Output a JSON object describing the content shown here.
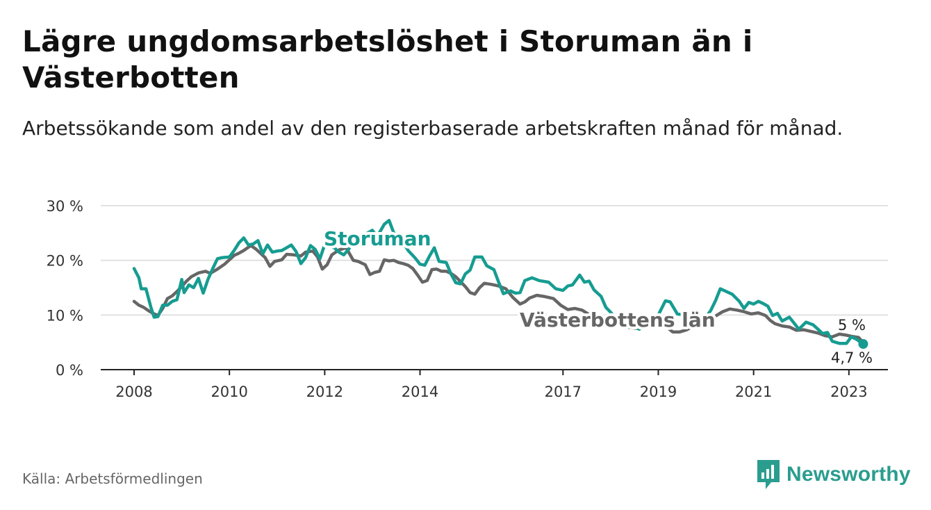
{
  "title": "Lägre ungdomsarbetslöshet i Storuman än i Västerbotten",
  "subtitle": "Arbetssökande som andel av den registerbaserade arbetskraften månad för månad.",
  "source": "Källa: Arbetsförmedlingen",
  "brand": {
    "name": "Newsworthy",
    "icon": "newsworthy-logo-icon",
    "color": "#2a9d8f"
  },
  "chart_data": {
    "type": "line",
    "y_unit": "%",
    "ylim": [
      0,
      30
    ],
    "yticks": [
      0,
      10,
      20,
      30
    ],
    "ytick_labels": [
      "0 %",
      "10 %",
      "20 %",
      "30 %"
    ],
    "xlim": [
      2008.0,
      2023.6
    ],
    "xticks": [
      2008,
      2010,
      2012,
      2014,
      2017,
      2019,
      2021,
      2023
    ],
    "xtick_labels": [
      "2008",
      "2010",
      "2012",
      "2014",
      "2017",
      "2019",
      "2021",
      "2023"
    ],
    "grid": true,
    "series": [
      {
        "name": "Västerbottens län",
        "color": "#666666",
        "end_label": "5 %",
        "points": [
          [
            2008.0,
            12.5
          ],
          [
            2008.1,
            11.8
          ],
          [
            2008.2,
            11.4
          ],
          [
            2008.3,
            10.8
          ],
          [
            2008.4,
            10.3
          ],
          [
            2008.5,
            9.9
          ],
          [
            2008.6,
            11.2
          ],
          [
            2008.7,
            13.0
          ],
          [
            2008.8,
            13.5
          ],
          [
            2008.9,
            14.3
          ],
          [
            2009.0,
            15.2
          ],
          [
            2009.1,
            16.2
          ],
          [
            2009.2,
            17.0
          ],
          [
            2009.35,
            17.7
          ],
          [
            2009.5,
            18.0
          ],
          [
            2009.6,
            17.6
          ],
          [
            2009.75,
            18.4
          ],
          [
            2009.9,
            19.3
          ],
          [
            2010.0,
            20.1
          ],
          [
            2010.1,
            20.9
          ],
          [
            2010.2,
            21.3
          ],
          [
            2010.3,
            21.8
          ],
          [
            2010.45,
            22.7
          ],
          [
            2010.55,
            22.1
          ],
          [
            2010.65,
            21.3
          ],
          [
            2010.75,
            20.5
          ],
          [
            2010.85,
            18.9
          ],
          [
            2010.95,
            19.8
          ],
          [
            2011.1,
            20.1
          ],
          [
            2011.2,
            21.1
          ],
          [
            2011.35,
            21.0
          ],
          [
            2011.5,
            20.8
          ],
          [
            2011.6,
            21.5
          ],
          [
            2011.75,
            21.7
          ],
          [
            2011.85,
            20.6
          ],
          [
            2011.95,
            18.4
          ],
          [
            2012.05,
            19.2
          ],
          [
            2012.15,
            21.0
          ],
          [
            2012.3,
            21.9
          ],
          [
            2012.45,
            22.3
          ],
          [
            2012.6,
            20.0
          ],
          [
            2012.7,
            19.8
          ],
          [
            2012.85,
            19.2
          ],
          [
            2012.95,
            17.4
          ],
          [
            2013.05,
            17.8
          ],
          [
            2013.15,
            18.0
          ],
          [
            2013.25,
            20.1
          ],
          [
            2013.35,
            19.9
          ],
          [
            2013.45,
            20.0
          ],
          [
            2013.55,
            19.6
          ],
          [
            2013.65,
            19.4
          ],
          [
            2013.75,
            19.1
          ],
          [
            2013.85,
            18.5
          ],
          [
            2013.95,
            17.3
          ],
          [
            2014.05,
            16.0
          ],
          [
            2014.15,
            16.3
          ],
          [
            2014.25,
            18.3
          ],
          [
            2014.35,
            18.4
          ],
          [
            2014.45,
            18.0
          ],
          [
            2014.55,
            18.0
          ],
          [
            2014.65,
            17.6
          ],
          [
            2014.75,
            17.0
          ],
          [
            2014.85,
            16.1
          ],
          [
            2014.95,
            15.2
          ],
          [
            2015.05,
            14.1
          ],
          [
            2015.15,
            13.8
          ],
          [
            2015.25,
            15.0
          ],
          [
            2015.35,
            15.8
          ],
          [
            2015.5,
            15.6
          ],
          [
            2015.65,
            15.3
          ],
          [
            2015.8,
            14.8
          ],
          [
            2015.95,
            13.2
          ],
          [
            2016.1,
            12.0
          ],
          [
            2016.2,
            12.4
          ],
          [
            2016.3,
            13.1
          ],
          [
            2016.45,
            13.6
          ],
          [
            2016.6,
            13.4
          ],
          [
            2016.8,
            13.0
          ],
          [
            2016.95,
            11.8
          ],
          [
            2017.1,
            11.0
          ],
          [
            2017.25,
            11.2
          ],
          [
            2017.4,
            10.9
          ],
          [
            2017.6,
            9.8
          ],
          [
            2017.8,
            9.0
          ],
          [
            2018.0,
            8.5
          ],
          [
            2018.2,
            8.0
          ],
          [
            2018.4,
            7.7
          ],
          [
            2018.6,
            7.5
          ],
          [
            2018.8,
            7.9
          ],
          [
            2019.0,
            8.2
          ],
          [
            2019.15,
            8.0
          ],
          [
            2019.3,
            6.9
          ],
          [
            2019.45,
            6.9
          ],
          [
            2019.6,
            7.3
          ],
          [
            2019.8,
            8.3
          ],
          [
            2019.95,
            8.5
          ],
          [
            2020.05,
            8.8
          ],
          [
            2020.2,
            9.8
          ],
          [
            2020.35,
            10.6
          ],
          [
            2020.5,
            11.1
          ],
          [
            2020.65,
            10.9
          ],
          [
            2020.8,
            10.6
          ],
          [
            2020.95,
            10.2
          ],
          [
            2021.1,
            10.4
          ],
          [
            2021.25,
            9.9
          ],
          [
            2021.35,
            9.0
          ],
          [
            2021.45,
            8.4
          ],
          [
            2021.6,
            8.0
          ],
          [
            2021.75,
            7.8
          ],
          [
            2021.9,
            7.2
          ],
          [
            2022.05,
            7.3
          ],
          [
            2022.2,
            7.0
          ],
          [
            2022.35,
            6.7
          ],
          [
            2022.5,
            6.2
          ],
          [
            2022.65,
            6.0
          ],
          [
            2022.8,
            6.5
          ],
          [
            2022.95,
            6.3
          ],
          [
            2023.05,
            6.1
          ],
          [
            2023.2,
            5.9
          ],
          [
            2023.3,
            5.0
          ]
        ]
      },
      {
        "name": "Storuman",
        "color": "#169c91",
        "end_label": "4,7 %",
        "points": [
          [
            2008.0,
            18.5
          ],
          [
            2008.1,
            16.8
          ],
          [
            2008.15,
            14.8
          ],
          [
            2008.25,
            14.8
          ],
          [
            2008.35,
            11.5
          ],
          [
            2008.42,
            9.6
          ],
          [
            2008.5,
            9.7
          ],
          [
            2008.6,
            11.8
          ],
          [
            2008.7,
            11.8
          ],
          [
            2008.8,
            12.5
          ],
          [
            2008.9,
            12.8
          ],
          [
            2009.0,
            16.5
          ],
          [
            2009.05,
            14.1
          ],
          [
            2009.15,
            15.5
          ],
          [
            2009.25,
            15.0
          ],
          [
            2009.35,
            16.7
          ],
          [
            2009.45,
            14.0
          ],
          [
            2009.55,
            16.5
          ],
          [
            2009.65,
            18.5
          ],
          [
            2009.75,
            20.3
          ],
          [
            2009.85,
            20.5
          ],
          [
            2010.0,
            20.6
          ],
          [
            2010.1,
            21.8
          ],
          [
            2010.2,
            23.2
          ],
          [
            2010.3,
            24.1
          ],
          [
            2010.4,
            22.8
          ],
          [
            2010.5,
            23.0
          ],
          [
            2010.6,
            23.6
          ],
          [
            2010.7,
            21.2
          ],
          [
            2010.8,
            22.8
          ],
          [
            2010.9,
            21.5
          ],
          [
            2011.0,
            21.7
          ],
          [
            2011.1,
            21.8
          ],
          [
            2011.2,
            22.3
          ],
          [
            2011.3,
            22.8
          ],
          [
            2011.4,
            21.6
          ],
          [
            2011.5,
            19.4
          ],
          [
            2011.6,
            20.5
          ],
          [
            2011.7,
            22.7
          ],
          [
            2011.8,
            22.0
          ],
          [
            2011.9,
            20.3
          ],
          [
            2012.0,
            22.9
          ],
          [
            2012.1,
            22.6
          ],
          [
            2012.2,
            22.3
          ],
          [
            2012.3,
            21.5
          ],
          [
            2012.4,
            21.0
          ],
          [
            2012.5,
            22.0
          ],
          [
            2012.6,
            23.5
          ],
          [
            2012.7,
            23.2
          ],
          [
            2012.8,
            23.9
          ],
          [
            2012.9,
            25.0
          ],
          [
            2013.0,
            25.5
          ],
          [
            2013.1,
            24.3
          ],
          [
            2013.25,
            26.6
          ],
          [
            2013.35,
            27.3
          ],
          [
            2013.45,
            25.0
          ],
          [
            2013.6,
            24.0
          ],
          [
            2013.75,
            21.8
          ],
          [
            2013.9,
            20.4
          ],
          [
            2014.0,
            19.3
          ],
          [
            2014.1,
            19.1
          ],
          [
            2014.2,
            20.8
          ],
          [
            2014.3,
            22.3
          ],
          [
            2014.4,
            19.8
          ],
          [
            2014.55,
            19.6
          ],
          [
            2014.65,
            17.5
          ],
          [
            2014.75,
            15.9
          ],
          [
            2014.85,
            15.7
          ],
          [
            2014.95,
            17.5
          ],
          [
            2015.05,
            18.2
          ],
          [
            2015.15,
            20.6
          ],
          [
            2015.3,
            20.6
          ],
          [
            2015.4,
            19.0
          ],
          [
            2015.55,
            18.3
          ],
          [
            2015.65,
            16.0
          ],
          [
            2015.75,
            13.9
          ],
          [
            2015.9,
            14.4
          ],
          [
            2016.0,
            14.0
          ],
          [
            2016.1,
            14.1
          ],
          [
            2016.2,
            16.3
          ],
          [
            2016.35,
            16.8
          ],
          [
            2016.5,
            16.3
          ],
          [
            2016.7,
            16.0
          ],
          [
            2016.85,
            14.8
          ],
          [
            2017.0,
            14.5
          ],
          [
            2017.1,
            15.3
          ],
          [
            2017.2,
            15.5
          ],
          [
            2017.35,
            17.3
          ],
          [
            2017.45,
            16.0
          ],
          [
            2017.55,
            16.2
          ],
          [
            2017.65,
            14.6
          ],
          [
            2017.8,
            13.4
          ],
          [
            2017.9,
            11.4
          ],
          [
            2018.0,
            10.5
          ],
          [
            2018.1,
            9.4
          ],
          [
            2018.25,
            8.8
          ],
          [
            2018.4,
            8.4
          ],
          [
            2018.6,
            7.4
          ],
          [
            2018.8,
            8.9
          ],
          [
            2019.0,
            10.0
          ],
          [
            2019.15,
            12.6
          ],
          [
            2019.25,
            12.4
          ],
          [
            2019.4,
            10.2
          ],
          [
            2019.6,
            9.9
          ],
          [
            2019.8,
            9.3
          ],
          [
            2020.0,
            9.6
          ],
          [
            2020.1,
            10.8
          ],
          [
            2020.2,
            12.6
          ],
          [
            2020.3,
            14.8
          ],
          [
            2020.4,
            14.4
          ],
          [
            2020.55,
            13.8
          ],
          [
            2020.7,
            12.5
          ],
          [
            2020.8,
            11.2
          ],
          [
            2020.9,
            12.3
          ],
          [
            2021.0,
            12.0
          ],
          [
            2021.1,
            12.5
          ],
          [
            2021.2,
            12.1
          ],
          [
            2021.3,
            11.6
          ],
          [
            2021.4,
            9.9
          ],
          [
            2021.5,
            10.3
          ],
          [
            2021.6,
            8.9
          ],
          [
            2021.75,
            9.6
          ],
          [
            2021.85,
            8.5
          ],
          [
            2021.95,
            7.4
          ],
          [
            2022.1,
            8.7
          ],
          [
            2022.25,
            8.2
          ],
          [
            2022.35,
            7.4
          ],
          [
            2022.45,
            6.6
          ],
          [
            2022.55,
            6.8
          ],
          [
            2022.65,
            5.2
          ],
          [
            2022.8,
            4.8
          ],
          [
            2022.95,
            4.8
          ],
          [
            2023.05,
            6.0
          ],
          [
            2023.15,
            5.6
          ],
          [
            2023.3,
            4.7
          ]
        ]
      }
    ]
  }
}
